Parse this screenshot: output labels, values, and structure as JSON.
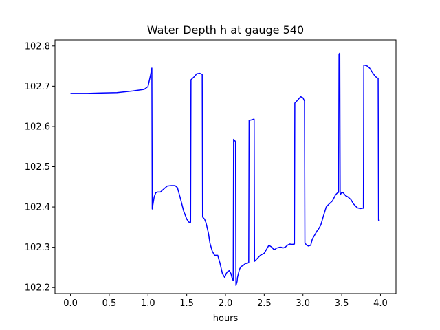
{
  "chart_data": {
    "type": "line",
    "title": "Water Depth h at gauge 540",
    "xlabel": "hours",
    "ylabel": "",
    "xlim": [
      -0.2,
      4.2
    ],
    "ylim": [
      102.185,
      102.815
    ],
    "xticks": [
      0.0,
      0.5,
      1.0,
      1.5,
      2.0,
      2.5,
      3.0,
      3.5,
      4.0
    ],
    "xtick_labels": [
      "0.0",
      "0.5",
      "1.0",
      "1.5",
      "2.0",
      "2.5",
      "3.0",
      "3.5",
      "4.0"
    ],
    "yticks": [
      102.2,
      102.3,
      102.4,
      102.5,
      102.6,
      102.7,
      102.8
    ],
    "ytick_labels": [
      "102.2",
      "102.3",
      "102.4",
      "102.5",
      "102.6",
      "102.7",
      "102.8"
    ],
    "grid": false,
    "series": [
      {
        "color": "#0000ff",
        "x": [
          0.0,
          0.2,
          0.4,
          0.6,
          0.8,
          0.95,
          1.0,
          1.03,
          1.05,
          1.055,
          1.08,
          1.1,
          1.12,
          1.16,
          1.2,
          1.25,
          1.3,
          1.35,
          1.38,
          1.42,
          1.46,
          1.5,
          1.53,
          1.55,
          1.555,
          1.6,
          1.63,
          1.67,
          1.7,
          1.705,
          1.73,
          1.75,
          1.78,
          1.8,
          1.83,
          1.86,
          1.9,
          1.93,
          1.96,
          1.99,
          2.01,
          2.03,
          2.05,
          2.07,
          2.09,
          2.1,
          2.105,
          2.12,
          2.13,
          2.135,
          2.15,
          2.155,
          2.18,
          2.2,
          2.23,
          2.26,
          2.28,
          2.3,
          2.305,
          2.35,
          2.36,
          2.37,
          2.375,
          2.4,
          2.45,
          2.5,
          2.53,
          2.56,
          2.6,
          2.62,
          2.64,
          2.66,
          2.7,
          2.72,
          2.74,
          2.77,
          2.8,
          2.83,
          2.86,
          2.89,
          2.895,
          2.93,
          2.97,
          3.0,
          3.02,
          3.025,
          3.05,
          3.07,
          3.1,
          3.12,
          3.15,
          3.18,
          3.2,
          3.23,
          3.26,
          3.3,
          3.34,
          3.38,
          3.42,
          3.45,
          3.46,
          3.465,
          3.475,
          3.48,
          3.5,
          3.52,
          3.55,
          3.58,
          3.62,
          3.65,
          3.7,
          3.74,
          3.77,
          3.78,
          3.785,
          3.8,
          3.83,
          3.86,
          3.9,
          3.93,
          3.96,
          3.97,
          3.975,
          3.99
        ],
        "y": [
          102.682,
          102.682,
          102.683,
          102.684,
          102.688,
          102.692,
          102.699,
          102.725,
          102.745,
          102.395,
          102.425,
          102.435,
          102.437,
          102.437,
          102.444,
          102.452,
          102.453,
          102.453,
          102.448,
          102.42,
          102.39,
          102.37,
          102.362,
          102.362,
          102.716,
          102.724,
          102.731,
          102.732,
          102.729,
          102.375,
          102.37,
          102.36,
          102.335,
          102.31,
          102.29,
          102.28,
          102.28,
          102.26,
          102.235,
          102.225,
          102.235,
          102.24,
          102.242,
          102.235,
          102.22,
          102.218,
          102.568,
          102.565,
          102.562,
          102.205,
          102.215,
          102.225,
          102.245,
          102.252,
          102.255,
          102.26,
          102.26,
          102.262,
          102.615,
          102.617,
          102.618,
          102.618,
          102.265,
          102.27,
          102.28,
          102.285,
          102.295,
          102.305,
          102.3,
          102.295,
          102.295,
          102.298,
          102.3,
          102.3,
          102.298,
          102.3,
          102.305,
          102.308,
          102.307,
          102.308,
          102.658,
          102.665,
          102.674,
          102.671,
          102.663,
          102.31,
          102.305,
          102.303,
          102.305,
          102.32,
          102.33,
          102.34,
          102.345,
          102.355,
          102.375,
          102.4,
          102.408,
          102.415,
          102.43,
          102.436,
          102.436,
          102.78,
          102.782,
          102.43,
          102.436,
          102.435,
          102.428,
          102.425,
          102.418,
          102.408,
          102.398,
          102.396,
          102.397,
          102.397,
          102.752,
          102.752,
          102.75,
          102.745,
          102.733,
          102.725,
          102.72,
          102.72,
          102.367,
          102.367
        ]
      }
    ]
  }
}
